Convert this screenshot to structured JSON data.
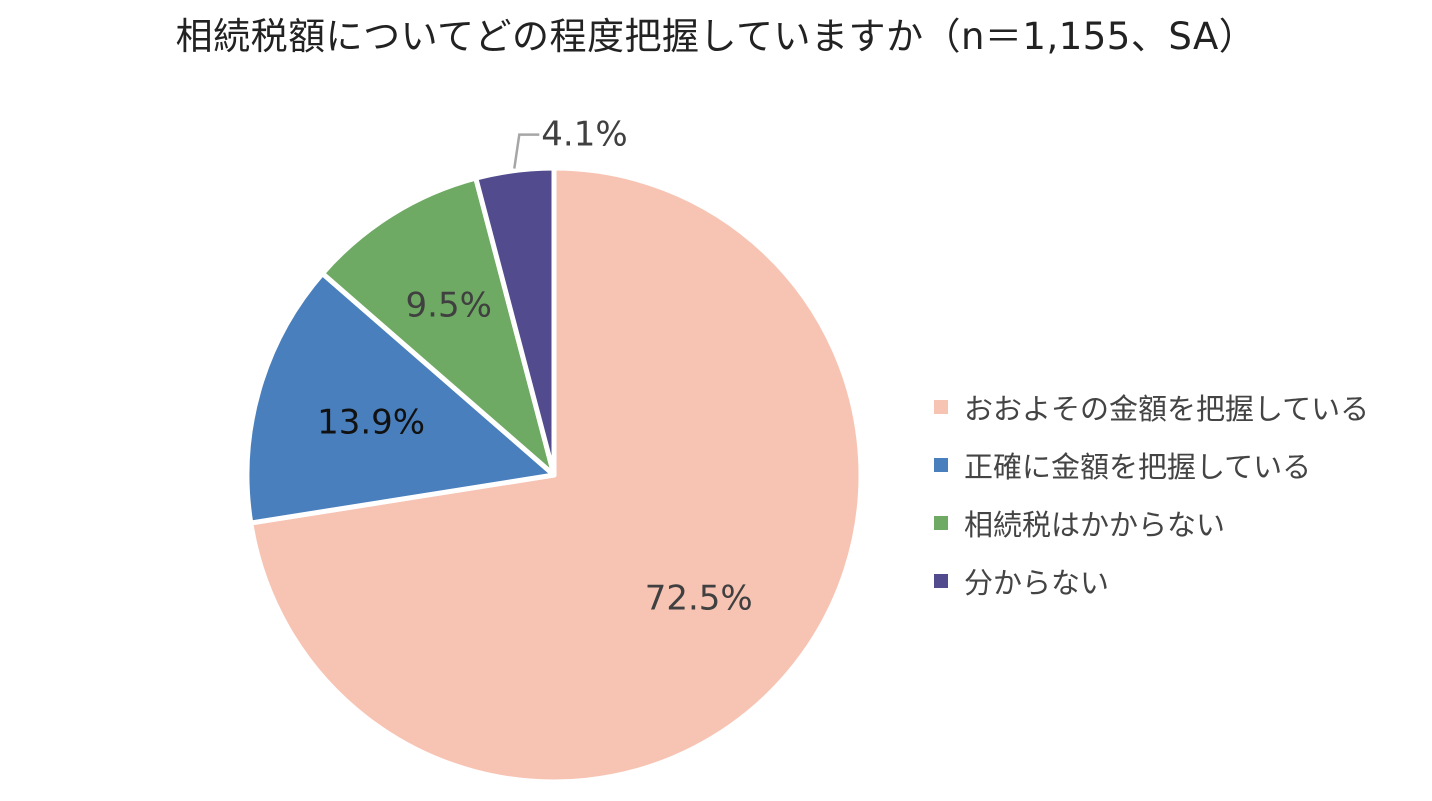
{
  "chart_data": {
    "type": "pie",
    "title": "相続税額についてどの程度把握していますか（n＝1,155、SA）",
    "slices": [
      {
        "label": "おおよその金額を把握している",
        "value": 72.5,
        "display": "72.5%",
        "color": "#F7C4B4"
      },
      {
        "label": "正確に金額を把握している",
        "value": 13.9,
        "display": "13.9%",
        "color": "#4A7FBD"
      },
      {
        "label": "相続税はかからない",
        "value": 9.5,
        "display": "9.5%",
        "color": "#6EAA63"
      },
      {
        "label": "分からない",
        "value": 4.1,
        "display": "4.1%",
        "color": "#524C8E"
      }
    ],
    "start": "12 o'clock",
    "direction": "clockwise",
    "legend_position": "right"
  }
}
